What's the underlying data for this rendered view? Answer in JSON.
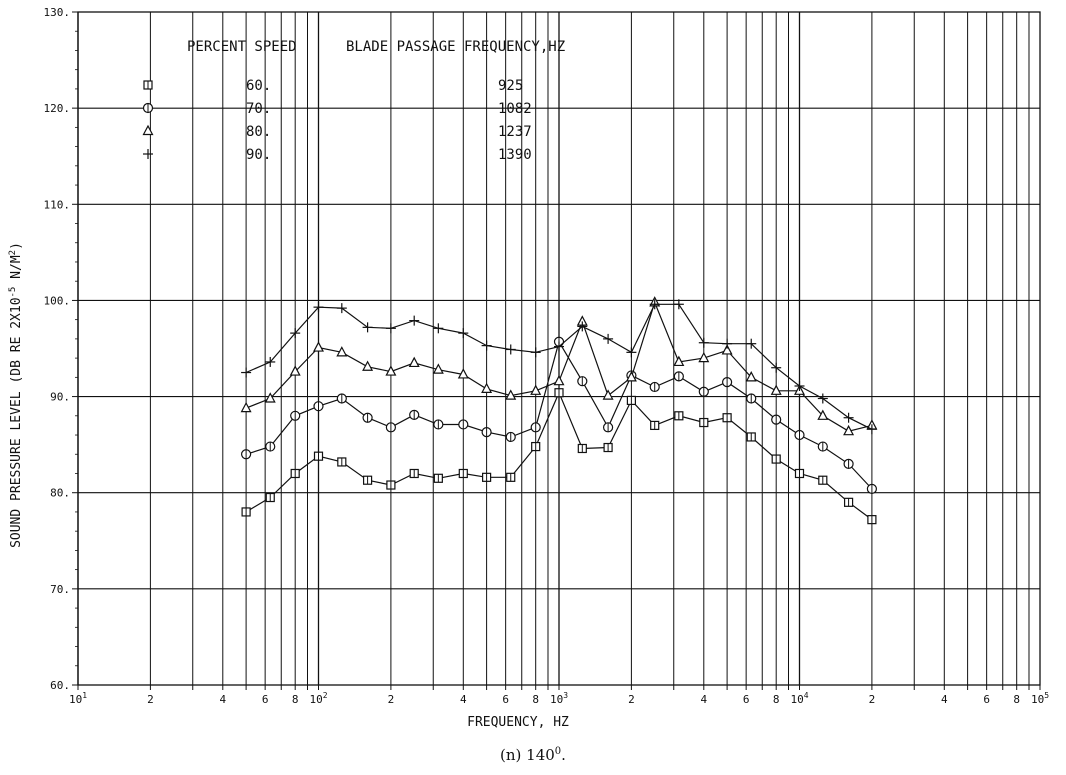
{
  "chart_data": {
    "type": "line",
    "xscale": "log",
    "xlim": [
      10,
      100000
    ],
    "ylim": [
      60,
      130
    ],
    "xlabel": "FREQUENCY, HZ",
    "ylabel": "SOUND PRESSURE LEVEL (DB RE 2X10",
    "ylabel_exp": "-5",
    "ylabel_tail": " N/M",
    "ylabel_tail_exp": "2",
    "ylabel_end": ")",
    "yticks": [
      {
        "v": 60,
        "label": "60."
      },
      {
        "v": 70,
        "label": "70."
      },
      {
        "v": 80,
        "label": "80."
      },
      {
        "v": 90,
        "label": "90."
      },
      {
        "v": 100,
        "label": "100."
      },
      {
        "v": 110,
        "label": "110."
      },
      {
        "v": 120,
        "label": "120."
      },
      {
        "v": 130,
        "label": "130."
      }
    ],
    "xticks": [
      {
        "v": 10,
        "label": "10",
        "exp": "1"
      },
      {
        "v": 20,
        "label": "2"
      },
      {
        "v": 40,
        "label": "4"
      },
      {
        "v": 60,
        "label": "6"
      },
      {
        "v": 80,
        "label": "8"
      },
      {
        "v": 100,
        "label": "10",
        "exp": "2"
      },
      {
        "v": 200,
        "label": "2"
      },
      {
        "v": 400,
        "label": "4"
      },
      {
        "v": 600,
        "label": "6"
      },
      {
        "v": 800,
        "label": "8"
      },
      {
        "v": 1000,
        "label": "10",
        "exp": "3"
      },
      {
        "v": 2000,
        "label": "2"
      },
      {
        "v": 4000,
        "label": "4"
      },
      {
        "v": 6000,
        "label": "6"
      },
      {
        "v": 8000,
        "label": "8"
      },
      {
        "v": 10000,
        "label": "10",
        "exp": "4"
      },
      {
        "v": 20000,
        "label": "2"
      },
      {
        "v": 40000,
        "label": "4"
      },
      {
        "v": 60000,
        "label": "6"
      },
      {
        "v": 80000,
        "label": "8"
      },
      {
        "v": 100000,
        "label": "10",
        "exp": "5"
      }
    ],
    "legend": {
      "header_speed": "PERCENT SPEED",
      "header_freq": "BLADE PASSAGE FREQUENCY,HZ"
    },
    "x": [
      50,
      63,
      80,
      100,
      125,
      160,
      200,
      250,
      315,
      400,
      500,
      630,
      800,
      1000,
      1250,
      1600,
      2000,
      2500,
      3150,
      4000,
      5000,
      6300,
      8000,
      10000,
      12500,
      16000,
      20000
    ],
    "series": [
      {
        "name": "60.",
        "bpf": "925",
        "marker": "square",
        "values": [
          78.0,
          79.5,
          82.0,
          83.8,
          83.2,
          81.3,
          80.8,
          82.0,
          81.5,
          82.0,
          81.6,
          81.6,
          84.8,
          90.4,
          84.6,
          84.7,
          89.6,
          87.0,
          88.0,
          87.3,
          87.8,
          85.8,
          83.5,
          82.0,
          81.3,
          79.0,
          77.2
        ]
      },
      {
        "name": "70.",
        "bpf": "1082",
        "marker": "circle",
        "values": [
          84.0,
          84.8,
          88.0,
          89.0,
          89.8,
          87.8,
          86.8,
          88.1,
          87.1,
          87.1,
          86.3,
          85.8,
          86.8,
          95.7,
          91.6,
          86.8,
          92.2,
          91.0,
          92.1,
          90.5,
          91.5,
          89.8,
          87.6,
          86.0,
          84.8,
          83.0,
          80.4
        ]
      },
      {
        "name": "80.",
        "bpf": "1237",
        "marker": "triangle",
        "values": [
          88.8,
          89.8,
          92.6,
          95.1,
          94.6,
          93.1,
          92.6,
          93.5,
          92.8,
          92.3,
          90.8,
          90.1,
          90.6,
          91.6,
          97.8,
          90.1,
          92.0,
          99.8,
          93.6,
          94.0,
          94.8,
          92.0,
          90.6,
          90.6,
          88.0,
          86.4,
          87.0
        ]
      },
      {
        "name": "90.",
        "bpf": "1390",
        "marker": "plus",
        "values": [
          92.5,
          93.6,
          96.6,
          99.3,
          99.2,
          97.2,
          97.1,
          97.9,
          97.1,
          96.6,
          95.3,
          94.9,
          94.6,
          95.2,
          97.3,
          96.0,
          94.6,
          99.6,
          99.6,
          95.6,
          95.5,
          95.5,
          93.0,
          91.1,
          89.8,
          87.8,
          86.6
        ]
      }
    ],
    "grid": true
  },
  "caption": {
    "text": "(n) 140",
    "sup": "0",
    "suffix": "."
  }
}
